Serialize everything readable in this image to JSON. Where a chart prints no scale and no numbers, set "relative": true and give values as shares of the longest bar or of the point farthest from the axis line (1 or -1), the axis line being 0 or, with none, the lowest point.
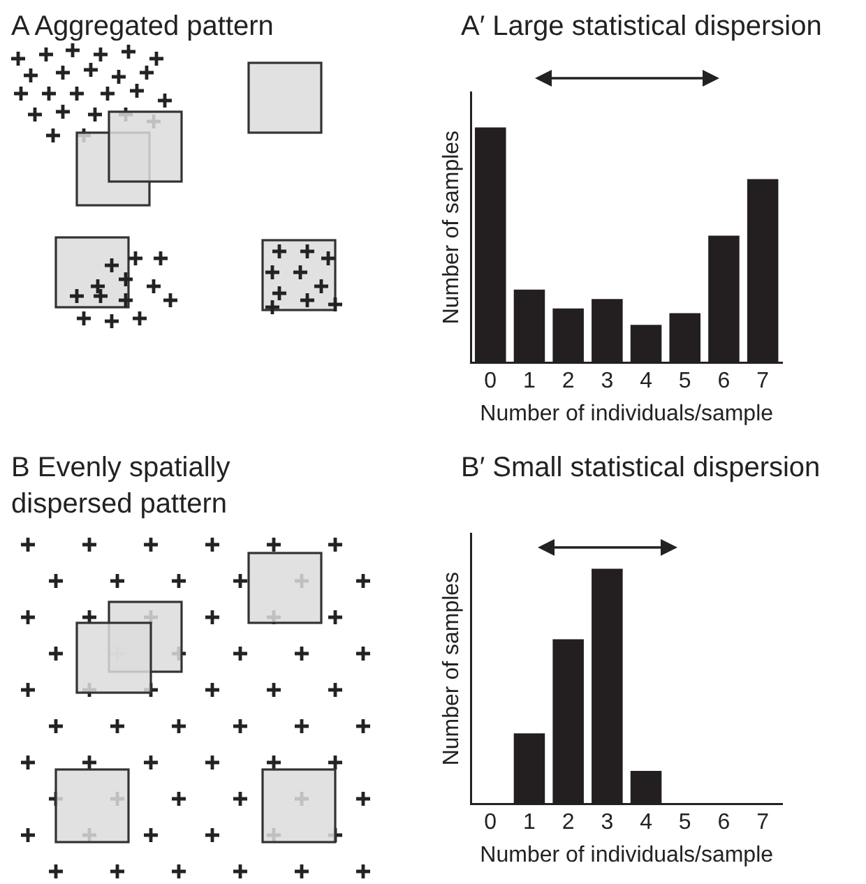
{
  "chart_data": [
    {
      "type": "other",
      "title": "A  Aggregated pattern"
    },
    {
      "type": "bar",
      "title": "A′  Large statistical dispersion",
      "xlabel": "Number of individuals/sample",
      "ylabel": "Number of samples",
      "categories": [
        "0",
        "1",
        "2",
        "3",
        "4",
        "5",
        "6",
        "7"
      ],
      "values": [
        1,
        0.31,
        0.23,
        0.27,
        0.16,
        0.21,
        0.54,
        0.78
      ],
      "color": "#231f20",
      "relative": true
    },
    {
      "type": "other",
      "title": "B  Evenly spatially dispersed pattern"
    },
    {
      "type": "bar",
      "title": "B′  Small statistical dispersion",
      "xlabel": "Number of individuals/sample",
      "ylabel": "Number of samples",
      "categories": [
        "0",
        "1",
        "2",
        "3",
        "4",
        "5",
        "6",
        "7"
      ],
      "values": [
        0,
        0.3,
        0.7,
        1,
        0.14,
        0,
        0,
        0
      ],
      "color": "#231f20",
      "relative": true
    }
  ]
}
